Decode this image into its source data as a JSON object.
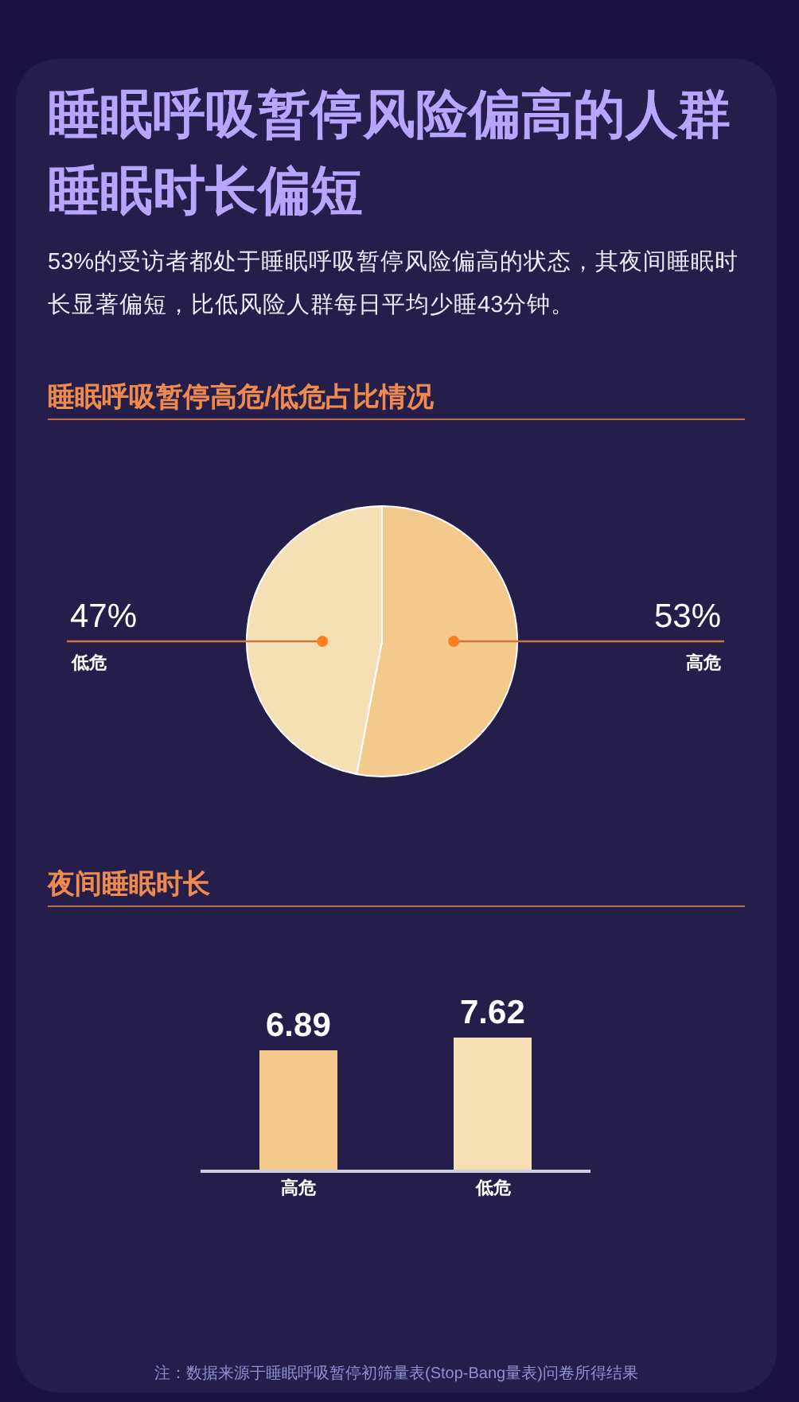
{
  "chart_data": [
    {
      "type": "other",
      "title": "睡眠呼吸暂停风险偏高的人群睡眠时长偏短",
      "subtitle": "53%的受访者都处于睡眠呼吸暂停风险偏高的状态，其夜间睡眠时长显著偏短，比低风险人群每日平均少睡43分钟。"
    },
    {
      "type": "pie",
      "title": "睡眠呼吸暂停高危/低危占比情况",
      "categories": [
        "高危",
        "低危"
      ],
      "values": [
        53,
        47
      ],
      "colors": [
        "#f3c98c",
        "#f5e0b6"
      ],
      "value_labels": [
        "53%",
        "47%"
      ]
    },
    {
      "type": "bar",
      "title": "夜间睡眠时长",
      "categories": [
        "高危",
        "低危"
      ],
      "values": [
        6.89,
        7.62
      ],
      "colors": [
        "#f3c98c",
        "#f5e0b6"
      ],
      "data_labels": true,
      "annotations": [
        "注：数据来源于睡眠呼吸暂停初筛量表(Stop-Bang量表)问卷所得结果"
      ]
    }
  ]
}
